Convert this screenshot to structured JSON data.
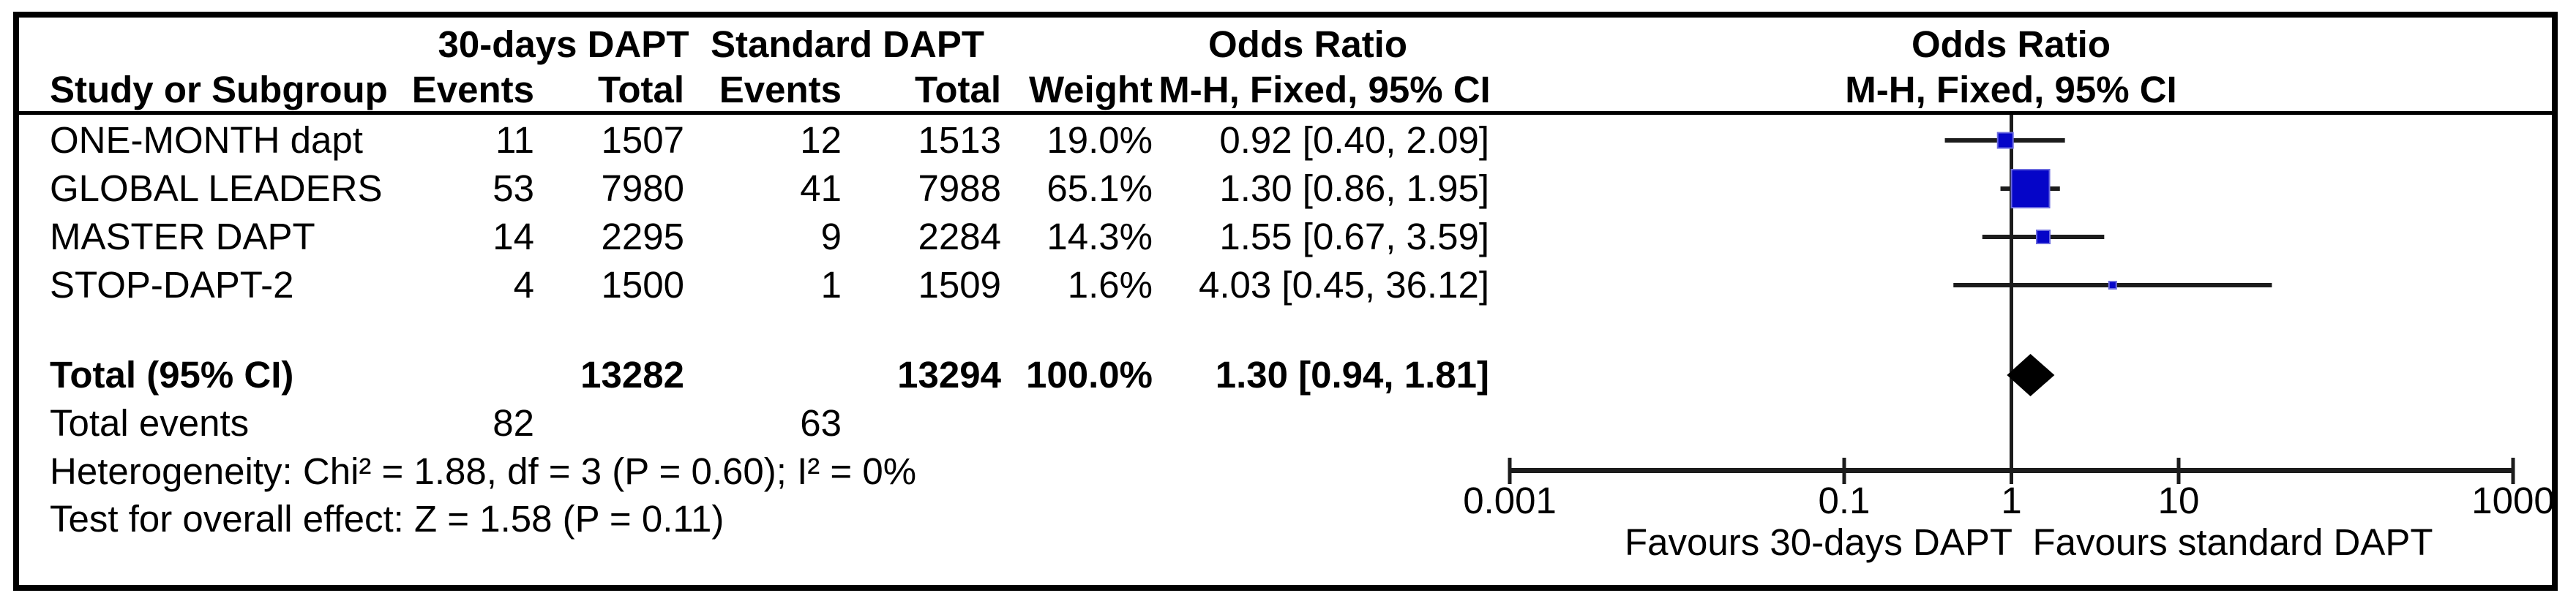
{
  "colors": {
    "frame": "#000000",
    "text": "#000000",
    "line": "#1c1c1c",
    "marker_blue": "#0505c8",
    "marker_border": "#6a6adf",
    "diamond": "#000000",
    "background": "#ffffff"
  },
  "header": {
    "group_experimental": "30-days DAPT",
    "group_control": "Standard DAPT",
    "study": "Study or Subgroup",
    "events": "Events",
    "total": "Total",
    "weight": "Weight",
    "or_text_col_line1": "Odds Ratio",
    "or_text_col_line2": "M-H, Fixed, 95% CI",
    "or_plot_col_line1": "Odds Ratio",
    "or_plot_col_line2": "M-H, Fixed, 95% CI"
  },
  "table": {
    "rows": [
      {
        "study": "ONE-MONTH dapt",
        "events_exp": "11",
        "total_exp": "1507",
        "events_ctrl": "12",
        "total_ctrl": "1513",
        "weight": "19.0%",
        "or_ci": "0.92 [0.40, 2.09]"
      },
      {
        "study": "GLOBAL LEADERS",
        "events_exp": "53",
        "total_exp": "7980",
        "events_ctrl": "41",
        "total_ctrl": "7988",
        "weight": "65.1%",
        "or_ci": "1.30 [0.86, 1.95]"
      },
      {
        "study": "MASTER DAPT",
        "events_exp": "14",
        "total_exp": "2295",
        "events_ctrl": "9",
        "total_ctrl": "2284",
        "weight": "14.3%",
        "or_ci": "1.55 [0.67, 3.59]"
      },
      {
        "study": "STOP-DAPT-2",
        "events_exp": "4",
        "total_exp": "1500",
        "events_ctrl": "1",
        "total_ctrl": "1509",
        "weight": "1.6%",
        "or_ci": "4.03 [0.45, 36.12]"
      }
    ],
    "total_row": {
      "label": "Total (95% CI)",
      "total_exp": "13282",
      "total_ctrl": "13294",
      "weight": "100.0%",
      "or_ci": "1.30 [0.94, 1.81]"
    },
    "total_events": {
      "label": "Total events",
      "exp": "82",
      "ctrl": "63"
    },
    "heterogeneity": "Heterogeneity: Chi² = 1.88, df = 3 (P = 0.60); I² = 0%",
    "overall_effect": "Test for overall effect: Z = 1.58 (P = 0.11)"
  },
  "chart_data": {
    "type": "forest",
    "effect_measure": "Odds Ratio",
    "method": "M-H, Fixed, 95% CI",
    "x_axis": {
      "scale": "log",
      "min": 0.001,
      "max": 1000,
      "ticks": [
        0.001,
        0.1,
        1,
        10,
        1000
      ],
      "tick_labels": [
        "0.001",
        "0.1",
        "1",
        "10",
        "1000"
      ]
    },
    "null_line": 1,
    "studies": [
      {
        "name": "ONE-MONTH dapt",
        "or": 0.92,
        "ci_low": 0.4,
        "ci_high": 2.09,
        "weight_pct": 19.0
      },
      {
        "name": "GLOBAL LEADERS",
        "or": 1.3,
        "ci_low": 0.86,
        "ci_high": 1.95,
        "weight_pct": 65.1
      },
      {
        "name": "MASTER DAPT",
        "or": 1.55,
        "ci_low": 0.67,
        "ci_high": 3.59,
        "weight_pct": 14.3
      },
      {
        "name": "STOP-DAPT-2",
        "or": 4.03,
        "ci_low": 0.45,
        "ci_high": 36.12,
        "weight_pct": 1.6
      }
    ],
    "summary": {
      "label": "Total (95% CI)",
      "or": 1.3,
      "ci_low": 0.94,
      "ci_high": 1.81,
      "weight_pct": 100.0
    },
    "favours_left": "Favours 30-days DAPT",
    "favours_right": "Favours standard DAPT"
  }
}
